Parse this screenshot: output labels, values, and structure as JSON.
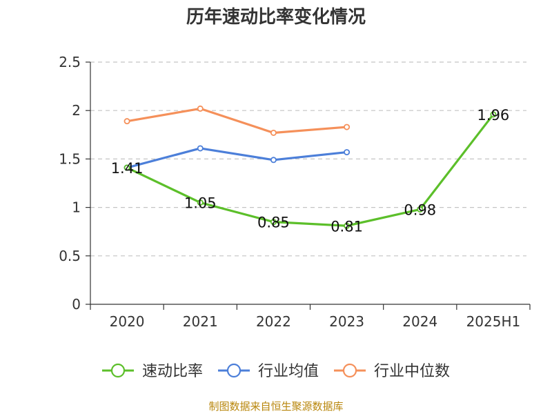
{
  "chart_data": {
    "type": "line",
    "title": "历年速动比率变化情况",
    "categories": [
      "2020",
      "2021",
      "2022",
      "2023",
      "2024",
      "2025H1"
    ],
    "y_ticks": [
      "0",
      "0.5",
      "1",
      "1.5",
      "2",
      "2.5"
    ],
    "ylim": [
      0,
      2.5
    ],
    "grid": true,
    "legend_position": "bottom",
    "series": [
      {
        "name": "速动比率",
        "color": "#5cbf2a",
        "values": [
          1.41,
          1.05,
          0.85,
          0.81,
          0.98,
          1.96
        ],
        "labels": [
          "1.41",
          "1.05",
          "0.85",
          "0.81",
          "0.98",
          "1.96"
        ]
      },
      {
        "name": "行业均值",
        "color": "#4c7fd9",
        "values": [
          1.41,
          1.61,
          1.49,
          1.57,
          null,
          null
        ]
      },
      {
        "name": "行业中位数",
        "color": "#f5905a",
        "values": [
          1.89,
          2.02,
          1.77,
          1.83,
          null,
          null
        ]
      }
    ]
  },
  "source": "制图数据来自恒生聚源数据库"
}
